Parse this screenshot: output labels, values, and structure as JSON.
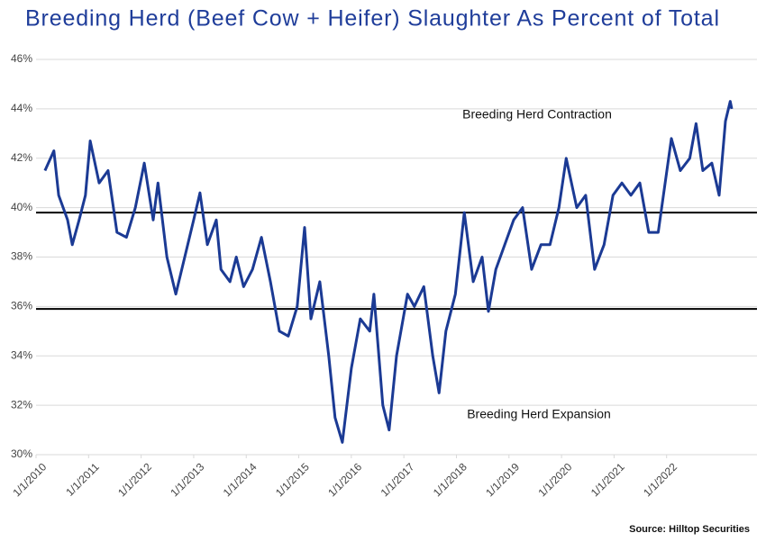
{
  "chart_data": {
    "type": "line",
    "title": "Breeding Herd (Beef Cow + Heifer) Slaughter As Percent of Total",
    "source": "Source: Hilltop Securities",
    "annotations": [
      "Breeding Herd Contraction",
      "Breeding Herd Expansion"
    ],
    "reference_lines": [
      39.8,
      35.9
    ],
    "grid": true,
    "xlim": [
      2010,
      2023.72
    ],
    "xticks": [
      {
        "value": 2010,
        "label": "1/1/2010"
      },
      {
        "value": 2011,
        "label": "1/1/2011"
      },
      {
        "value": 2012,
        "label": "1/1/2012"
      },
      {
        "value": 2013,
        "label": "1/1/2013"
      },
      {
        "value": 2014,
        "label": "1/1/2014"
      },
      {
        "value": 2015,
        "label": "1/1/2015"
      },
      {
        "value": 2016,
        "label": "1/1/2016"
      },
      {
        "value": 2017,
        "label": "1/1/2017"
      },
      {
        "value": 2018,
        "label": "1/1/2018"
      },
      {
        "value": 2019,
        "label": "1/1/2019"
      },
      {
        "value": 2020,
        "label": "1/1/2020"
      },
      {
        "value": 2021,
        "label": "1/1/2021"
      },
      {
        "value": 2022,
        "label": "1/1/2022"
      }
    ],
    "ylim": [
      30,
      46
    ],
    "yticks": [
      {
        "value": 30,
        "label": "30%"
      },
      {
        "value": 32,
        "label": "32%"
      },
      {
        "value": 34,
        "label": "34%"
      },
      {
        "value": 36,
        "label": "36%"
      },
      {
        "value": 38,
        "label": "38%"
      },
      {
        "value": 40,
        "label": "40%"
      },
      {
        "value": 42,
        "label": "42%"
      },
      {
        "value": 44,
        "label": "44%"
      },
      {
        "value": 46,
        "label": "46%"
      }
    ],
    "series": [
      {
        "color": "#1b3a94",
        "x": [
          2010.17,
          2010.34,
          2010.43,
          2010.6,
          2010.69,
          2010.82,
          2010.94,
          2011.03,
          2011.2,
          2011.37,
          2011.54,
          2011.72,
          2011.89,
          2012.06,
          2012.23,
          2012.32,
          2012.49,
          2012.66,
          2012.83,
          2013.0,
          2013.12,
          2013.26,
          2013.43,
          2013.52,
          2013.69,
          2013.81,
          2013.95,
          2014.12,
          2014.29,
          2014.46,
          2014.63,
          2014.8,
          2014.97,
          2015.11,
          2015.23,
          2015.4,
          2015.57,
          2015.69,
          2015.83,
          2016.0,
          2016.17,
          2016.35,
          2016.43,
          2016.6,
          2016.72,
          2016.86,
          2017.07,
          2017.2,
          2017.38,
          2017.55,
          2017.67,
          2017.8,
          2017.98,
          2018.15,
          2018.32,
          2018.49,
          2018.61,
          2018.75,
          2018.92,
          2019.09,
          2019.26,
          2019.43,
          2019.61,
          2019.78,
          2019.95,
          2020.09,
          2020.29,
          2020.46,
          2020.63,
          2020.81,
          2020.98,
          2021.15,
          2021.32,
          2021.49,
          2021.66,
          2021.84,
          2022.09,
          2022.26,
          2022.44,
          2022.56,
          2022.69,
          2022.86,
          2023.0,
          2023.12,
          2023.21,
          2023.24
        ],
        "values": [
          41.5,
          42.3,
          40.5,
          39.5,
          38.5,
          39.5,
          40.5,
          42.7,
          41.0,
          41.5,
          39.0,
          38.8,
          40.0,
          41.8,
          39.5,
          41.0,
          38.0,
          36.5,
          38.0,
          39.5,
          40.6,
          38.5,
          39.5,
          37.5,
          37.0,
          38.0,
          36.8,
          37.5,
          38.8,
          37.0,
          35.0,
          34.8,
          36.0,
          39.2,
          35.5,
          37.0,
          34.0,
          31.5,
          30.5,
          33.5,
          35.5,
          35.0,
          36.5,
          32.0,
          31.0,
          34.0,
          36.5,
          36.0,
          36.8,
          34.0,
          32.5,
          35.0,
          36.5,
          39.8,
          37.0,
          38.0,
          35.8,
          37.5,
          38.5,
          39.5,
          40.0,
          37.5,
          38.5,
          38.5,
          40.0,
          42.0,
          40.0,
          40.5,
          37.5,
          38.5,
          40.5,
          41.0,
          40.5,
          41.0,
          39.0,
          39.0,
          42.8,
          41.5,
          42.0,
          43.4,
          41.5,
          41.8,
          40.5,
          43.5,
          44.3,
          44.0
        ]
      }
    ]
  }
}
